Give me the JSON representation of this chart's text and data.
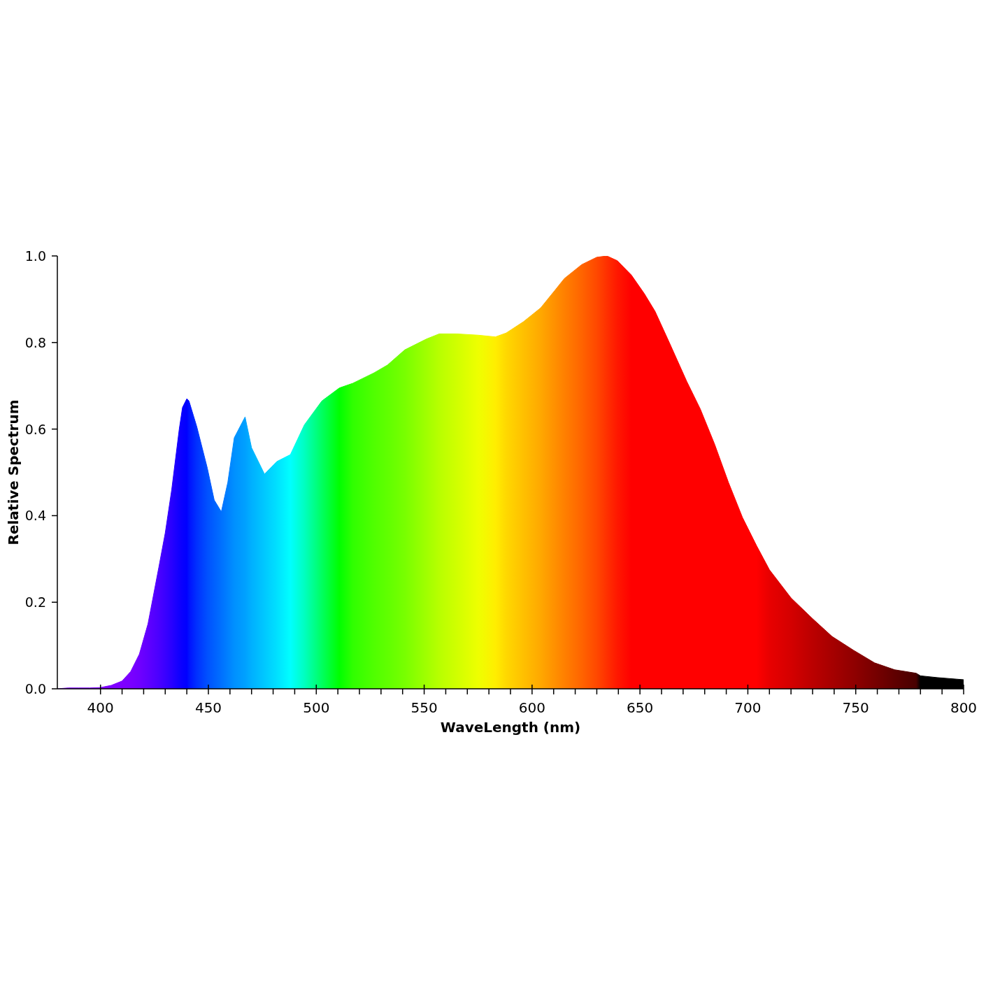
{
  "chart_data": {
    "type": "area",
    "xlabel": "WaveLength (nm)",
    "ylabel": "Relative Spectrum",
    "x": [
      380,
      385,
      390,
      395,
      400,
      405,
      410,
      414,
      418,
      422,
      427,
      430,
      433,
      436.5,
      438,
      440,
      441,
      444.6,
      449.5,
      452.7,
      456,
      459,
      462,
      467,
      470,
      476,
      481.7,
      488,
      494.5,
      502.6,
      510.7,
      517,
      526.8,
      533,
      541,
      551,
      557,
      565,
      575,
      583,
      588,
      596,
      604,
      610.5,
      615,
      623,
      630,
      634.7,
      639.5,
      646,
      652,
      657,
      663.6,
      671.7,
      678,
      684.6,
      691,
      697.5,
      704,
      710,
      720,
      730,
      739,
      749,
      758.7,
      768,
      778,
      780,
      787.7,
      800
    ],
    "series": [
      {
        "values": [
          0,
          0.002,
          0.002,
          0.002,
          0.003,
          0.008,
          0.018,
          0.04,
          0.08,
          0.15,
          0.28,
          0.36,
          0.46,
          0.6,
          0.65,
          0.67,
          0.665,
          0.606,
          0.51,
          0.436,
          0.409,
          0.477,
          0.58,
          0.628,
          0.557,
          0.496,
          0.525,
          0.541,
          0.61,
          0.665,
          0.695,
          0.706,
          0.73,
          0.748,
          0.783,
          0.808,
          0.82,
          0.82,
          0.817,
          0.813,
          0.822,
          0.848,
          0.88,
          0.92,
          0.948,
          0.98,
          0.997,
          1.0,
          0.989,
          0.956,
          0.913,
          0.872,
          0.8,
          0.71,
          0.646,
          0.565,
          0.477,
          0.396,
          0.331,
          0.275,
          0.21,
          0.162,
          0.121,
          0.089,
          0.06,
          0.044,
          0.036,
          0.03,
          0.026,
          0.021
        ],
        "colors": [
          "#7f00ff",
          "#7f00ff",
          "#7f00ff",
          "#7f00ff",
          "#7f00ff",
          "#7f00ff",
          "#7f00ff",
          "#7a00ff",
          "#7000ff",
          "#6000ff",
          "#4a00ff",
          "#3a00ff",
          "#2800ff",
          "#1000ff",
          "#0800ff",
          "#0000ff",
          "#0010ff",
          "#0030ff",
          "#0050ff",
          "#0060ff",
          "#0070ff",
          "#0080ff",
          "#0090ff",
          "#00a0ff",
          "#00b0ff",
          "#00c8ff",
          "#00e0ff",
          "#00ffff",
          "#00ffc0",
          "#00ff60",
          "#00ff00",
          "#30ff00",
          "#50ff00",
          "#60ff00",
          "#78ff00",
          "#a0ff00",
          "#b8ff00",
          "#d0ff00",
          "#eeff00",
          "#ffee00",
          "#ffd800",
          "#ffc000",
          "#ffa800",
          "#ff9000",
          "#ff8000",
          "#ff6400",
          "#ff4800",
          "#ff3000",
          "#ff1800",
          "#ff0000",
          "#ff0000",
          "#ff0000",
          "#ff0000",
          "#ff0000",
          "#ff0000",
          "#ff0000",
          "#ff0000",
          "#ff0000",
          "#ff0000",
          "#e80000",
          "#d40000",
          "#bb0000",
          "#a60000",
          "#900000",
          "#780000",
          "#600000",
          "#480000",
          "#000000",
          "#000000",
          "#000000"
        ]
      }
    ],
    "xlim": [
      380,
      800
    ],
    "xticks": [
      400,
      {
        "value": 410,
        "label": null
      },
      {
        "value": 420,
        "label": null
      },
      {
        "value": 430,
        "label": null
      },
      {
        "value": 440,
        "label": null
      },
      450,
      {
        "value": 460,
        "label": null
      },
      {
        "value": 470,
        "label": null
      },
      {
        "value": 480,
        "label": null
      },
      {
        "value": 490,
        "label": null
      },
      500,
      {
        "value": 510,
        "label": null
      },
      {
        "value": 520,
        "label": null
      },
      {
        "value": 530,
        "label": null
      },
      {
        "value": 540,
        "label": null
      },
      550,
      {
        "value": 560,
        "label": null
      },
      {
        "value": 570,
        "label": null
      },
      {
        "value": 580,
        "label": null
      },
      {
        "value": 590,
        "label": null
      },
      600,
      {
        "value": 610,
        "label": null
      },
      {
        "value": 620,
        "label": null
      },
      {
        "value": 630,
        "label": null
      },
      {
        "value": 640,
        "label": null
      },
      650,
      {
        "value": 660,
        "label": null
      },
      {
        "value": 670,
        "label": null
      },
      {
        "value": 680,
        "label": null
      },
      {
        "value": 690,
        "label": null
      },
      700,
      {
        "value": 710,
        "label": null
      },
      {
        "value": 720,
        "label": null
      },
      {
        "value": 730,
        "label": null
      },
      {
        "value": 740,
        "label": null
      },
      750,
      {
        "value": 760,
        "label": null
      },
      {
        "value": 770,
        "label": null
      },
      {
        "value": 780,
        "label": null
      },
      {
        "value": 790,
        "label": null
      },
      800
    ],
    "ylim": [
      0,
      1
    ],
    "yticks": [
      {
        "value": 0,
        "label": "0.0"
      },
      {
        "value": 0.2,
        "label": "0.2"
      },
      {
        "value": 0.4,
        "label": "0.4"
      },
      {
        "value": 0.6,
        "label": "0.6"
      },
      {
        "value": 0.8,
        "label": "0.8"
      },
      {
        "value": 1,
        "label": "1.0"
      }
    ],
    "grid": false,
    "legend": false
  }
}
